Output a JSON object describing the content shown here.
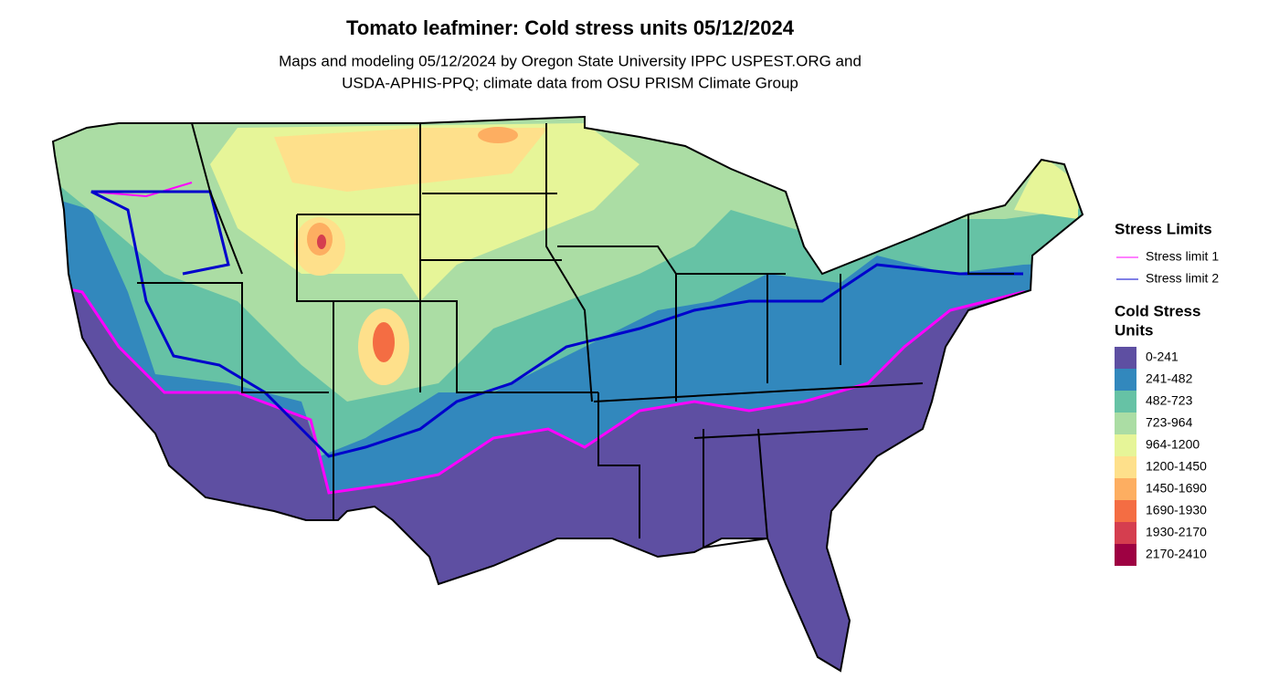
{
  "title": "Tomato leafminer: Cold stress units 05/12/2024",
  "subtitle": [
    "Maps and modeling 05/12/2024 by Oregon State University IPPC USPEST.ORG and",
    "USDA-APHIS-PPQ; climate data from OSU PRISM Climate Group"
  ],
  "legend_lines": {
    "title": "Stress Limits",
    "items": [
      {
        "label": "Stress limit 1",
        "color": "#ff00ff"
      },
      {
        "label": "Stress limit 2",
        "color": "#0000cc"
      }
    ]
  },
  "legend_fill": {
    "title": [
      "Cold Stress",
      "Units"
    ],
    "items": [
      {
        "label": "0-241",
        "color": "#5e4fa2"
      },
      {
        "label": "241-482",
        "color": "#3288bd"
      },
      {
        "label": "482-723",
        "color": "#66c2a5"
      },
      {
        "label": "723-964",
        "color": "#abdda4"
      },
      {
        "label": "964-1200",
        "color": "#e6f598"
      },
      {
        "label": "1200-1450",
        "color": "#fee08b"
      },
      {
        "label": "1450-1690",
        "color": "#fdae61"
      },
      {
        "label": "1690-1930",
        "color": "#f46d43"
      },
      {
        "label": "1930-2170",
        "color": "#d53e4f"
      },
      {
        "label": "2170-2410",
        "color": "#9e0142"
      }
    ]
  }
}
